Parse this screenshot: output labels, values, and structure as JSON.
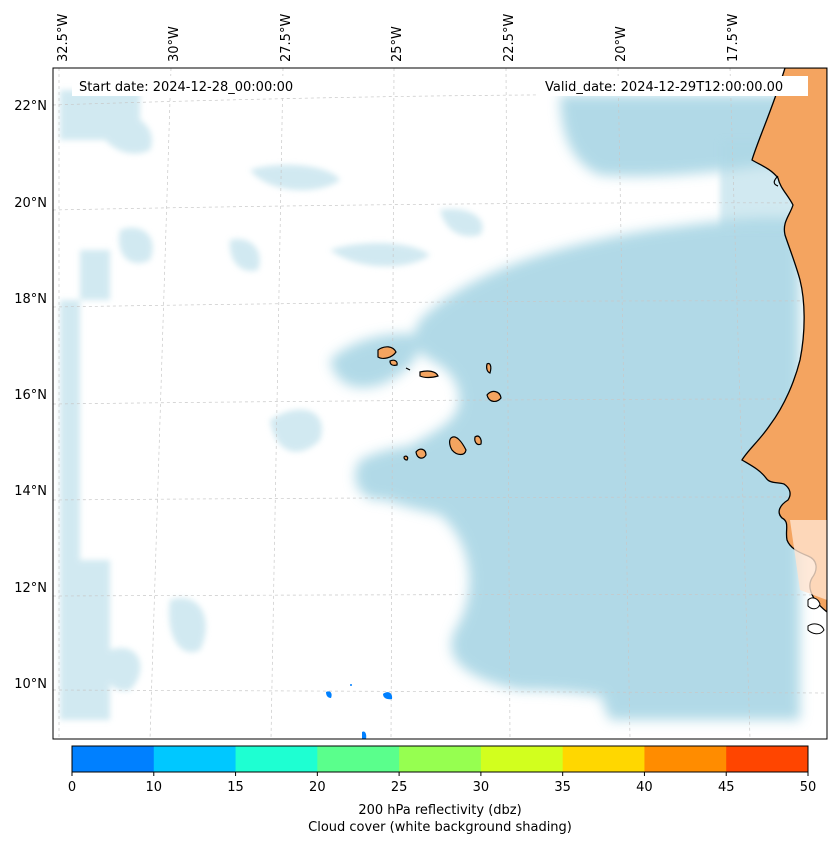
{
  "map": {
    "start_date": "Start date: 2024-12-28_00:00:00",
    "valid_date": "Valid_date: 2024-12-29T12:00:00.00",
    "lon_labels": [
      "32.5°W",
      "30°W",
      "27.5°W",
      "25°W",
      "22.5°W",
      "20°W",
      "17.5°W"
    ],
    "lat_labels": [
      "22°N",
      "20°N",
      "18°N",
      "16°N",
      "14°N",
      "12°N",
      "10°N"
    ],
    "land_color": "#f4a460",
    "cloud_color": "#add8e6",
    "grid": true
  },
  "colorbar": {
    "ticks": [
      "0",
      "10",
      "15",
      "20",
      "25",
      "30",
      "35",
      "40",
      "45",
      "50"
    ],
    "colors": [
      "#0080ff",
      "#00c8ff",
      "#1effd2",
      "#5aff8c",
      "#96ff50",
      "#d2ff1e",
      "#ffd700",
      "#ff8c00",
      "#ff4500"
    ],
    "label": "200 hPa reflectivity (dbz)",
    "sublabel": "Cloud cover (white background shading)"
  }
}
